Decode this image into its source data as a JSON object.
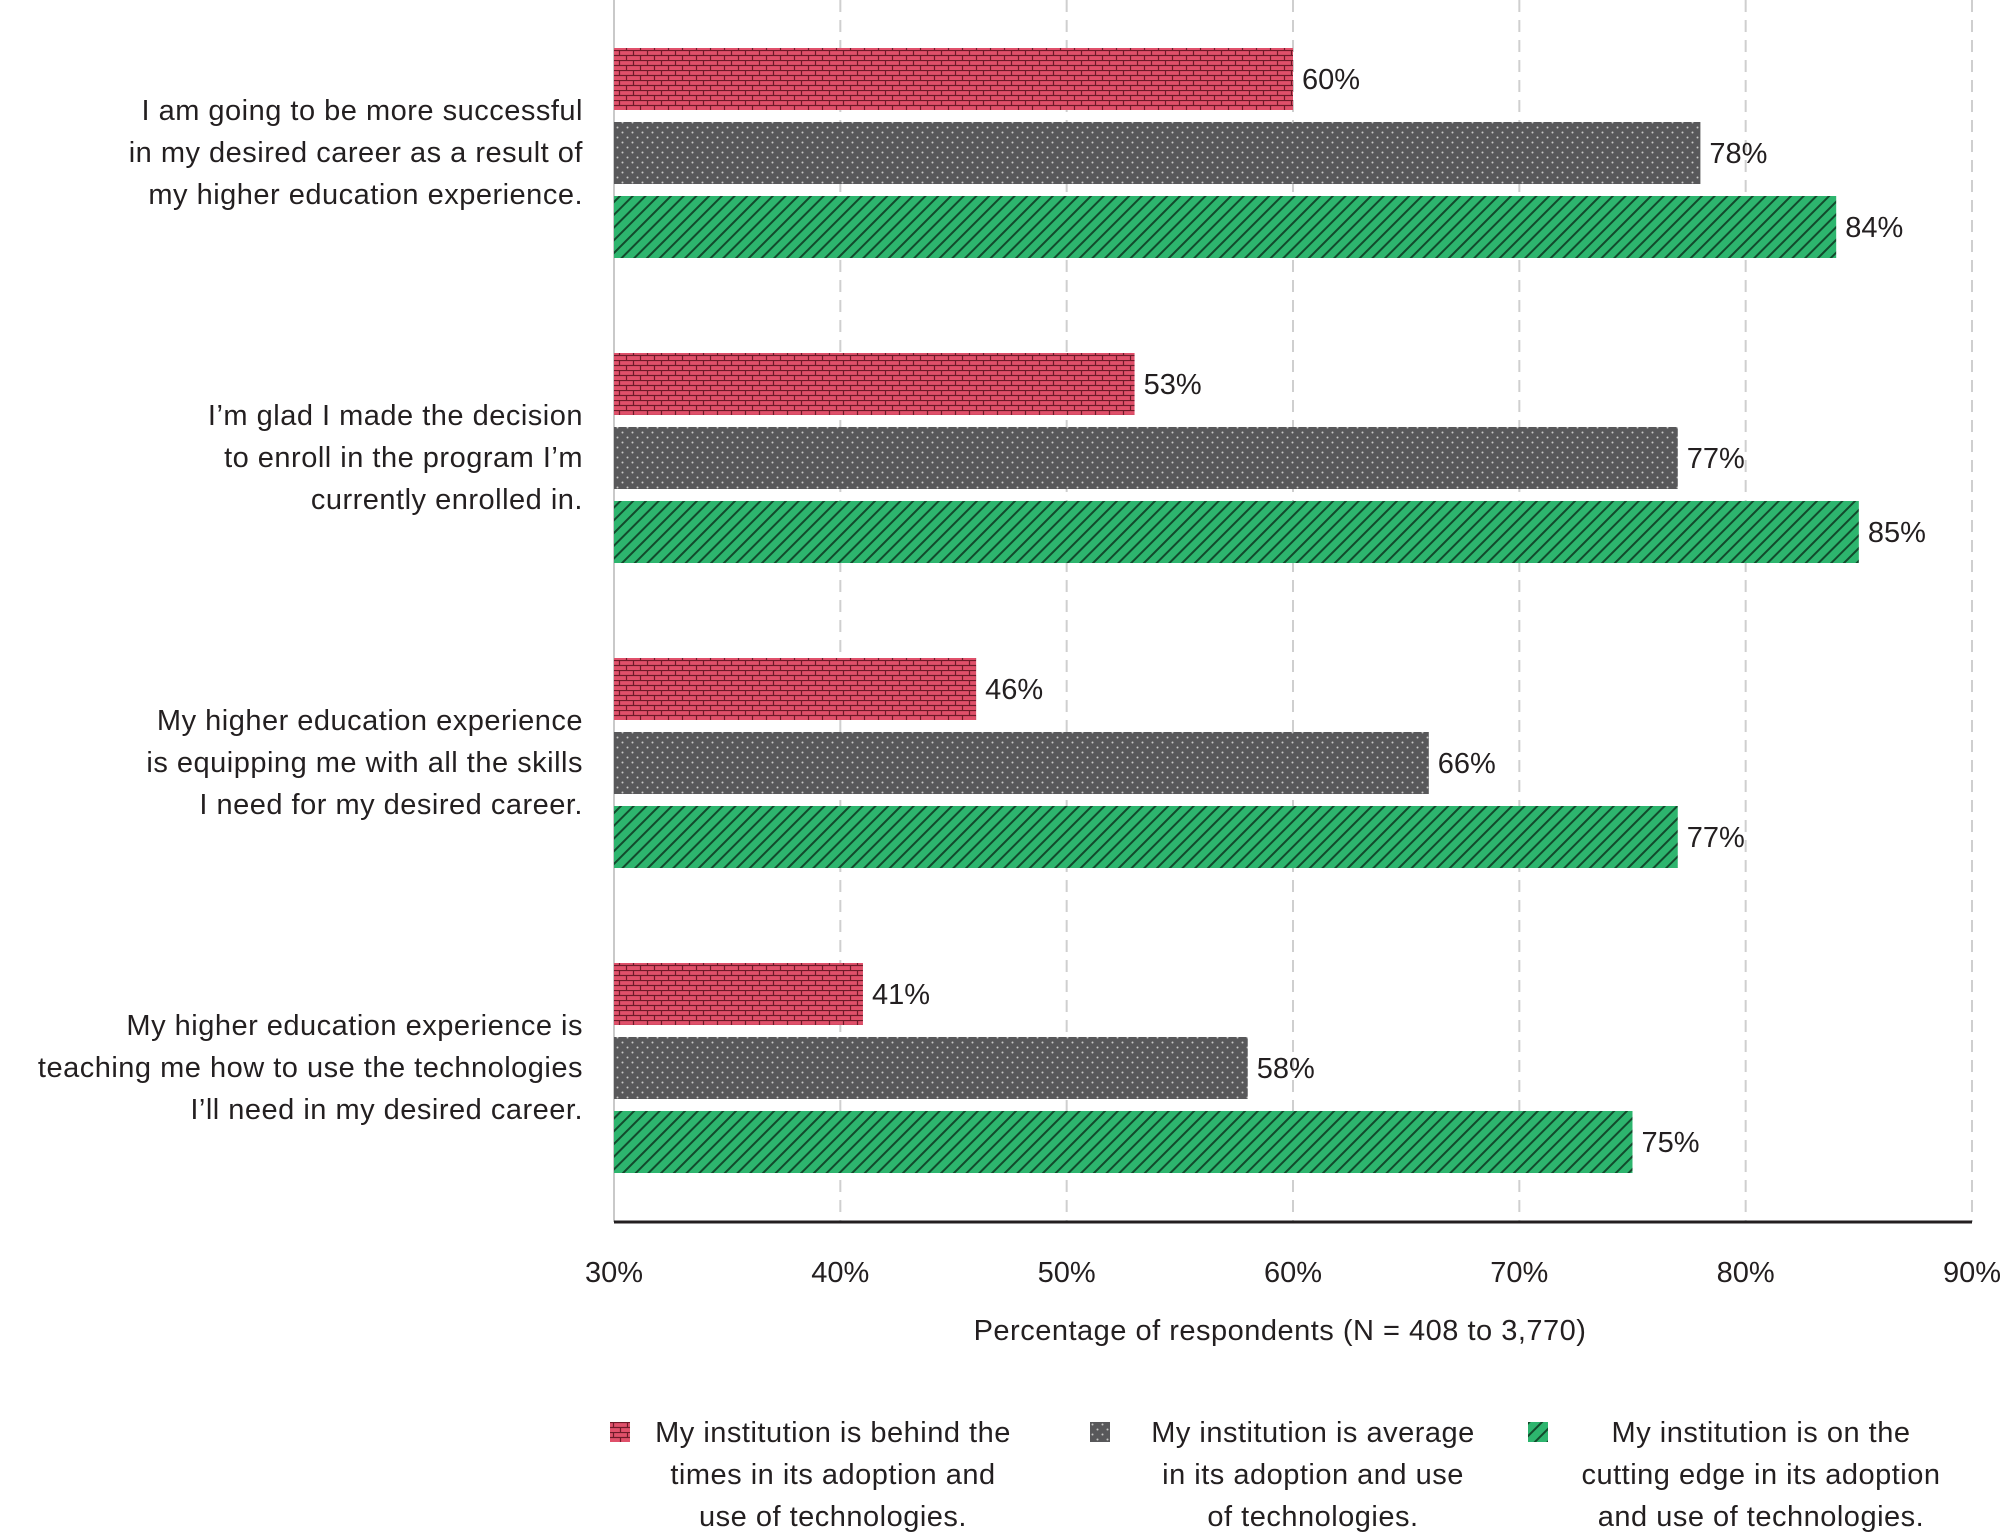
{
  "chart_data": {
    "type": "bar",
    "orientation": "horizontal",
    "categories": [
      "I am going to be more successful in my desired career as a result of my higher education experience.",
      "I’m glad I made the decision to enroll in the program I’m currently enrolled in.",
      "My higher education experience is equipping me with all the skills I need for my desired career.",
      "My higher education experience is teaching me how to use the technologies I’ll need in my desired career."
    ],
    "category_lines": [
      [
        "I am going to be more successful",
        "in my desired career as a result of",
        "my higher education experience."
      ],
      [
        "I’m glad I made the decision",
        "to enroll in the program I’m",
        "currently enrolled in."
      ],
      [
        "My higher education experience",
        "is equipping me with all the skills",
        "I need for my desired career."
      ],
      [
        "My higher education experience is",
        "teaching me how to use the technologies",
        "I’ll need in my desired career."
      ]
    ],
    "series": [
      {
        "name": "My institution is behind the times in its adoption and use of technologies.",
        "legend_lines": [
          "My institution is behind the",
          "times in its adoption and",
          "use of technologies."
        ],
        "values": [
          60,
          53,
          46,
          41
        ],
        "color": "#e0506a",
        "pattern": "brick"
      },
      {
        "name": "My institution is average in its adoption and use of technologies.",
        "legend_lines": [
          "My institution is average",
          "in its adoption and use",
          "of technologies."
        ],
        "values": [
          78,
          77,
          66,
          58
        ],
        "color": "#58585a",
        "pattern": "dots"
      },
      {
        "name": "My institution is on the cutting edge in its adoption and use of technologies.",
        "legend_lines": [
          "My institution is on the",
          "cutting edge in its adoption",
          "and use of technologies."
        ],
        "values": [
          84,
          85,
          77,
          75
        ],
        "color": "#2db56e",
        "pattern": "diagonal"
      }
    ],
    "value_suffix": "%",
    "xlabel": "Percentage of respondents (N = 408 to 3,770)",
    "xlim": [
      30,
      90
    ],
    "xticks": [
      "30%",
      "40%",
      "50%",
      "60%",
      "70%",
      "80%",
      "90%"
    ],
    "grid": "vertical dashed",
    "legend_position": "bottom"
  }
}
